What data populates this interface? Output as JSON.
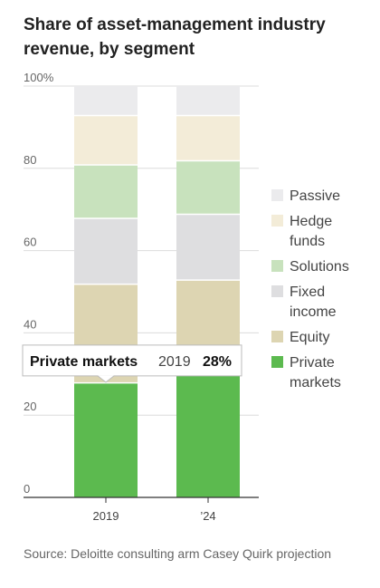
{
  "chart_data": {
    "type": "bar",
    "stacked": true,
    "title": "Share of asset-management industry revenue, by segment",
    "categories": [
      "2019",
      "’24"
    ],
    "ylim": [
      0,
      100
    ],
    "yticks": [
      0,
      20,
      40,
      60,
      80,
      100
    ],
    "ytick_labels": [
      "0",
      "20",
      "40",
      "60",
      "80",
      "100%"
    ],
    "grid": true,
    "legend_position": "right",
    "series": [
      {
        "name": "Private markets",
        "legend_lines": [
          "Private",
          "markets"
        ],
        "color": "#5cba4f",
        "values": [
          28,
          30
        ]
      },
      {
        "name": "Equity",
        "legend_lines": [
          "Equity"
        ],
        "color": "#ddd5b2",
        "values": [
          24,
          23
        ]
      },
      {
        "name": "Fixed income",
        "legend_lines": [
          "Fixed",
          "income"
        ],
        "color": "#dedee0",
        "values": [
          16,
          16
        ]
      },
      {
        "name": "Solutions",
        "legend_lines": [
          "Solutions"
        ],
        "color": "#c8e2bd",
        "values": [
          13,
          13
        ]
      },
      {
        "name": "Hedge funds",
        "legend_lines": [
          "Hedge",
          "funds"
        ],
        "color": "#f3ecd8",
        "values": [
          12,
          11
        ]
      },
      {
        "name": "Passive",
        "legend_lines": [
          "Passive"
        ],
        "color": "#ebebed",
        "values": [
          7,
          7
        ]
      }
    ],
    "tooltip": {
      "series": "Private markets",
      "category": "2019",
      "value": "28%"
    }
  },
  "source": "Source: Deloitte consulting arm Casey Quirk projection"
}
